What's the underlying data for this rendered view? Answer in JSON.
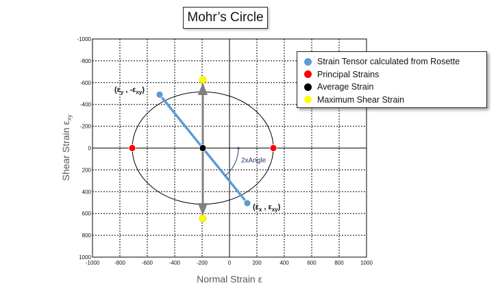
{
  "chart_data": {
    "type": "scatter",
    "title": "Mohr’s Circle",
    "xlabel": "Normal Strain ε",
    "ylabel": "Shear Strain ε",
    "ylabel_subscript": "xy",
    "xlim": [
      -1000,
      1000
    ],
    "ylim": [
      -1000,
      1000
    ],
    "y_axis_inverted": true,
    "grid": true,
    "x_ticks": [
      -1000,
      -800,
      -600,
      -400,
      -200,
      0,
      200,
      400,
      600,
      800,
      1000
    ],
    "y_ticks": [
      -1000,
      -800,
      -600,
      -400,
      -200,
      0,
      200,
      400,
      600,
      800,
      1000
    ],
    "x_tick_labels": [
      "-1000",
      "-800",
      "-600",
      "-400",
      "-200",
      "0",
      "200",
      "400",
      "600",
      "800",
      "1000"
    ],
    "y_tick_labels": [
      "-1000",
      "-800",
      "-600",
      "-400",
      "-200",
      "0",
      "200",
      "400",
      "600",
      "800",
      "1000"
    ],
    "circle": {
      "center": [
        -195,
        0
      ],
      "radius": 515
    },
    "series": [
      {
        "name": "Strain Tensor calculated from Rosette",
        "color": "#5b9bd5",
        "points": [
          [
            -510,
            -490
          ],
          [
            130,
            505
          ]
        ]
      },
      {
        "name": "Principal Strains",
        "color": "#ff0000",
        "points": [
          [
            -710,
            0
          ],
          [
            320,
            0
          ]
        ]
      },
      {
        "name": "Average Strain",
        "color": "#000000",
        "points": [
          [
            -195,
            0
          ]
        ]
      },
      {
        "name": "Maximum Shear Strain",
        "color": "#ffff00",
        "points": [
          [
            -195,
            -625
          ],
          [
            -195,
            645
          ]
        ]
      }
    ],
    "annotations": {
      "point1_label": "(ε",
      "point1_sub1": "y",
      "point1_mid": " , -ε",
      "point1_sub2": "xy",
      "point1_end": ")",
      "point2_label": "(ε",
      "point2_sub1": "x",
      "point2_mid": " , ε",
      "point2_sub2": "xy",
      "point2_end": ")",
      "angle_label": "2xAngle"
    },
    "legend_position": "top-right"
  }
}
